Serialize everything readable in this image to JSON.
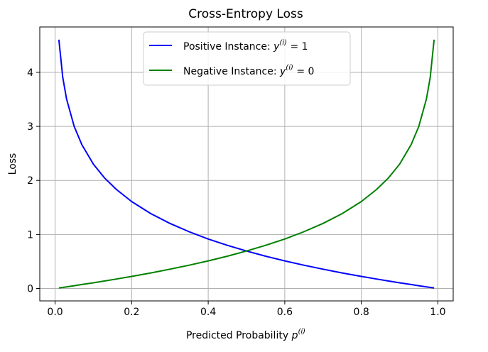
{
  "chart_data": {
    "type": "line",
    "title": "Cross-Entropy Loss",
    "xlabel": "Predicted Probability",
    "xlabel_sup": "(i)",
    "xlabel_var": "p",
    "ylabel": "Loss",
    "xlim": [
      -0.04,
      1.04
    ],
    "ylim": [
      -0.23,
      4.84
    ],
    "xticks": [
      0.0,
      0.2,
      0.4,
      0.6,
      0.8,
      1.0
    ],
    "xtick_labels": [
      "0.0",
      "0.2",
      "0.4",
      "0.6",
      "0.8",
      "1.0"
    ],
    "yticks": [
      0,
      1,
      2,
      3,
      4
    ],
    "ytick_labels": [
      "0",
      "1",
      "2",
      "3",
      "4"
    ],
    "grid": true,
    "legend_position": "top-center",
    "x": [
      0.01,
      0.02,
      0.03,
      0.05,
      0.07,
      0.1,
      0.13,
      0.16,
      0.2,
      0.25,
      0.3,
      0.35,
      0.4,
      0.45,
      0.5,
      0.55,
      0.6,
      0.65,
      0.7,
      0.75,
      0.8,
      0.84,
      0.87,
      0.9,
      0.93,
      0.95,
      0.97,
      0.98,
      0.99
    ],
    "series": [
      {
        "legend_text": "Positive Instance: ",
        "legend_var": "y",
        "legend_sup": "(i)",
        "legend_eq": " = 1",
        "color": "#0000ff",
        "values": [
          4.605,
          3.912,
          3.507,
          2.996,
          2.659,
          2.303,
          2.04,
          1.833,
          1.609,
          1.386,
          1.204,
          1.05,
          0.916,
          0.799,
          0.693,
          0.598,
          0.511,
          0.431,
          0.357,
          0.288,
          0.223,
          0.174,
          0.139,
          0.105,
          0.073,
          0.051,
          0.03,
          0.02,
          0.01
        ]
      },
      {
        "legend_text": "Negative Instance: ",
        "legend_var": "y",
        "legend_sup": "(i)",
        "legend_eq": " = 0",
        "color": "#008000",
        "values": [
          0.01,
          0.02,
          0.03,
          0.051,
          0.073,
          0.105,
          0.139,
          0.174,
          0.223,
          0.288,
          0.357,
          0.431,
          0.511,
          0.598,
          0.693,
          0.799,
          0.916,
          1.05,
          1.204,
          1.386,
          1.609,
          1.833,
          2.04,
          2.303,
          2.659,
          2.996,
          3.507,
          3.912,
          4.605
        ]
      }
    ]
  }
}
